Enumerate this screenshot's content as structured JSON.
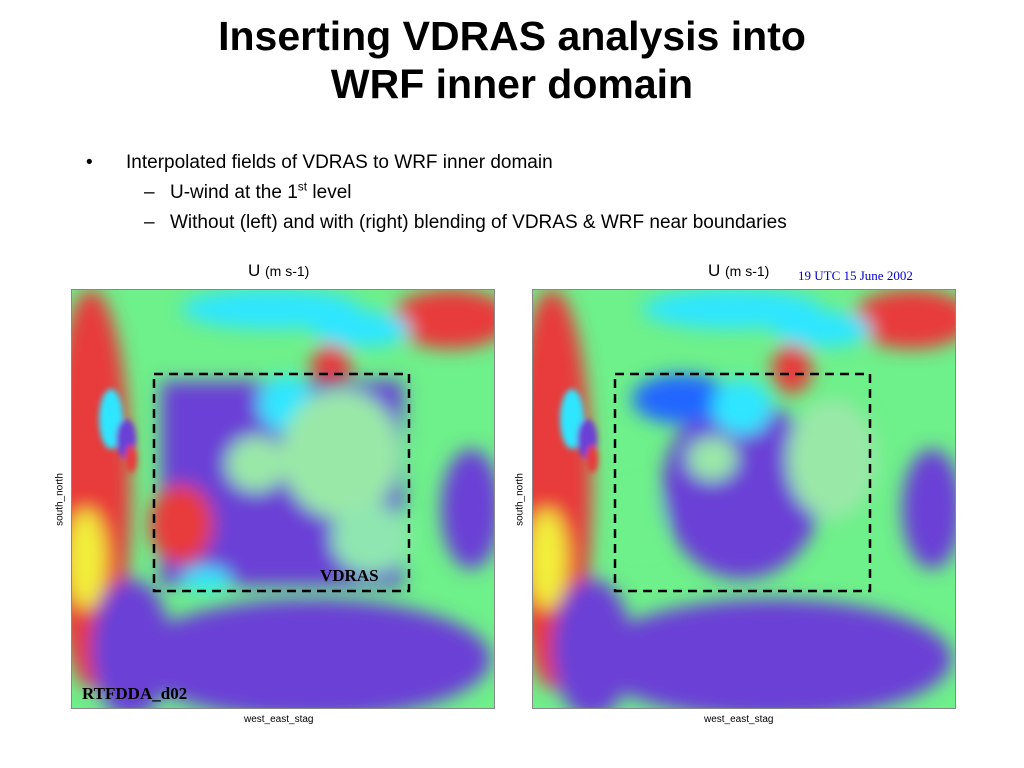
{
  "slide": {
    "title_line1": "Inserting VDRAS analysis into",
    "title_line2": "WRF inner domain",
    "bullets": {
      "main": "Interpolated fields of VDRAS to WRF inner domain",
      "sub1_pre": "U-wind at the 1",
      "sub1_sup": "st",
      "sub1_post": " level",
      "sub2": "Without (left) and with (right) blending of VDRAS & WRF near boundaries"
    }
  },
  "panels": {
    "left": {
      "var": "U",
      "units": "(m s-1)",
      "ylabel": "south_north",
      "xlabel": "west_east_stag",
      "box_label": "VDRAS",
      "domain_label": "RTFDDA_d02"
    },
    "right": {
      "var": "U",
      "units": "(m s-1)",
      "ylabel": "south_north",
      "xlabel": "west_east_stag",
      "date": "19 UTC 15 June 2002"
    }
  },
  "colors": {
    "box": "#000000",
    "date_text": "#0000c8",
    "field_green": "#6ef08a",
    "field_blue": "#6a3fd6",
    "field_cyan": "#2fe6ff",
    "field_red": "#e83a3a",
    "field_yellow": "#f2ef3a"
  }
}
